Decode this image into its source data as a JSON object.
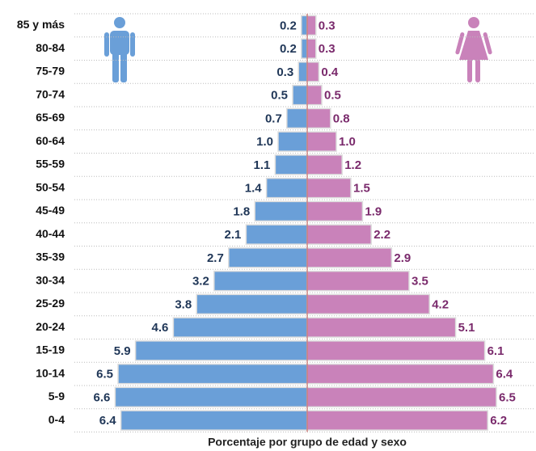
{
  "chart_data": {
    "type": "pyramid",
    "x_label": "Porcentaje por grupo de edad y sexo",
    "categories": [
      "85 y más",
      "80-84",
      "75-79",
      "70-74",
      "65-69",
      "60-64",
      "55-59",
      "50-54",
      "45-49",
      "40-44",
      "35-39",
      "30-34",
      "25-29",
      "20-24",
      "15-19",
      "10-14",
      "5-9",
      "0-4"
    ],
    "series": [
      {
        "color": "#6a9fd8",
        "label_color": "#1f3657",
        "values": [
          0.2,
          0.2,
          0.3,
          0.5,
          0.7,
          1.0,
          1.1,
          1.4,
          1.8,
          2.1,
          2.7,
          3.2,
          3.8,
          4.6,
          5.9,
          6.5,
          6.6,
          6.4
        ],
        "value_labels": [
          "0.2",
          "0.2",
          "0.3",
          "0.5",
          "0.7",
          "1.0",
          "1.1",
          "1.4",
          "1.8",
          "2.1",
          "2.7",
          "3.2",
          "3.8",
          "4.6",
          "5.9",
          "6.5",
          "6.6",
          "6.4"
        ]
      },
      {
        "color": "#c982ba",
        "label_color": "#7a2a6c",
        "values": [
          0.3,
          0.3,
          0.4,
          0.5,
          0.8,
          1.0,
          1.2,
          1.5,
          1.9,
          2.2,
          2.9,
          3.5,
          4.2,
          5.1,
          6.1,
          6.4,
          6.5,
          6.2
        ],
        "value_labels": [
          "0.3",
          "0.3",
          "0.4",
          "0.5",
          "0.8",
          "1.0",
          "1.2",
          "1.5",
          "1.9",
          "2.2",
          "2.9",
          "3.5",
          "4.2",
          "5.1",
          "6.1",
          "6.4",
          "6.5",
          "6.2"
        ]
      }
    ]
  }
}
